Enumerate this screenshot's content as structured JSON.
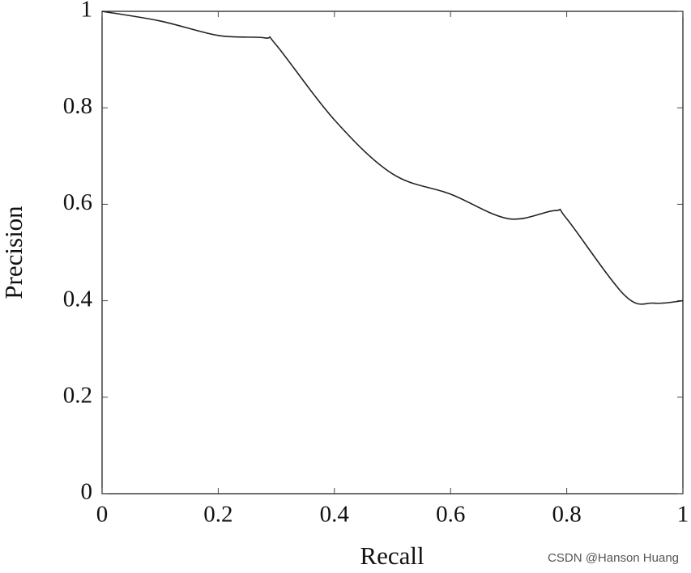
{
  "chart_data": {
    "type": "line",
    "xlabel": "Recall",
    "ylabel": "Precision",
    "x": [
      0,
      0.1,
      0.2,
      0.28,
      0.3,
      0.4,
      0.5,
      0.6,
      0.7,
      0.78,
      0.8,
      0.9,
      0.95,
      1
    ],
    "series": [
      {
        "name": "Precision",
        "color": "#222222",
        "values": [
          1.0,
          0.98,
          0.95,
          0.945,
          0.93,
          0.775,
          0.663,
          0.621,
          0.57,
          0.587,
          0.57,
          0.411,
          0.395,
          0.4
        ]
      }
    ],
    "xlim": [
      0,
      1
    ],
    "ylim": [
      0,
      1
    ],
    "xticks": [
      0,
      0.2,
      0.4,
      0.6,
      0.8,
      1
    ],
    "yticks": [
      0,
      0.2,
      0.4,
      0.6,
      0.8,
      1
    ],
    "watermark": "CSDN @Hanson Huang"
  }
}
